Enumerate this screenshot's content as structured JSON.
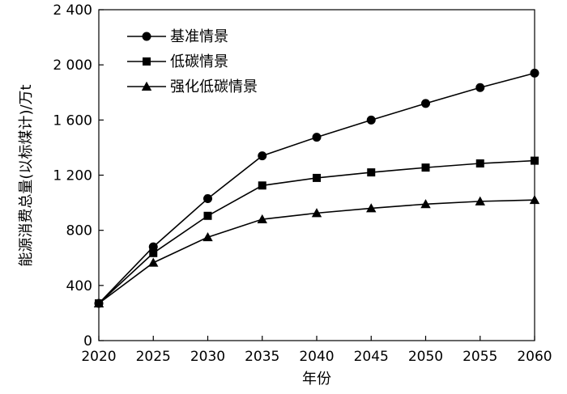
{
  "chart_data": {
    "type": "line",
    "title": "",
    "xlabel": "年份",
    "ylabel": "能源消费总量(以标煤计)/万t",
    "categories": [
      "2020",
      "2025",
      "2030",
      "2035",
      "2040",
      "2045",
      "2050",
      "2055",
      "2060"
    ],
    "x_tick_labels": [
      "2020",
      "2025",
      "2030",
      "2035",
      "2040",
      "2045",
      "2050",
      "2055",
      "2060"
    ],
    "y_tick_labels": [
      "0",
      "400",
      "800",
      "1 200",
      "1 600",
      "2 000",
      "2 400"
    ],
    "ylim": [
      0,
      2400
    ],
    "xlim": [
      2020,
      2060
    ],
    "grid": false,
    "legend_position": "top-left",
    "series": [
      {
        "name": "基准情景",
        "marker": "circle",
        "color": "#000000",
        "values": [
          270,
          680,
          1030,
          1340,
          1475,
          1600,
          1720,
          1835,
          1940
        ]
      },
      {
        "name": "低碳情景",
        "marker": "square",
        "color": "#000000",
        "values": [
          270,
          635,
          905,
          1125,
          1180,
          1220,
          1255,
          1285,
          1305
        ]
      },
      {
        "name": "强化低碳情景",
        "marker": "triangle",
        "color": "#000000",
        "values": [
          270,
          565,
          750,
          880,
          925,
          960,
          990,
          1010,
          1020
        ]
      }
    ]
  }
}
